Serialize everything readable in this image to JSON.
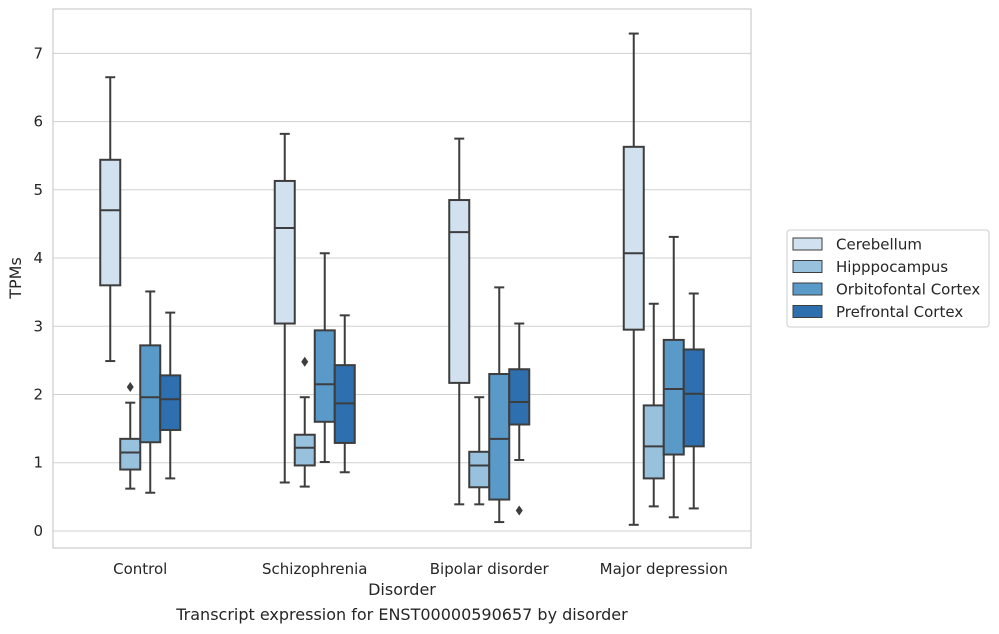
{
  "caption": "Transcript expression for ENST00000590657 by disorder",
  "chart_data": {
    "type": "box",
    "xlabel": "Disorder",
    "ylabel": "TPMs",
    "ylim": [
      -0.25,
      7.65
    ],
    "yticks": [
      0,
      1,
      2,
      3,
      4,
      5,
      6,
      7
    ],
    "grid": "horizontal",
    "legend_position": "right",
    "categories": [
      "Control",
      "Schizophrenia",
      "Bipolar disorder",
      "Major depression"
    ],
    "series": [
      {
        "name": "Cerebellum",
        "color": "#d1e1f0",
        "boxes": [
          {
            "whisker_low": 2.49,
            "q1": 3.6,
            "median": 4.7,
            "q3": 5.44,
            "whisker_high": 6.65,
            "outliers": []
          },
          {
            "whisker_low": 0.71,
            "q1": 3.04,
            "median": 4.44,
            "q3": 5.13,
            "whisker_high": 5.82,
            "outliers": []
          },
          {
            "whisker_low": 0.39,
            "q1": 2.17,
            "median": 4.38,
            "q3": 4.85,
            "whisker_high": 5.75,
            "outliers": []
          },
          {
            "whisker_low": 0.09,
            "q1": 2.95,
            "median": 4.07,
            "q3": 5.63,
            "whisker_high": 7.29,
            "outliers": []
          }
        ]
      },
      {
        "name": "Hipppocampus",
        "color": "#98c1de",
        "boxes": [
          {
            "whisker_low": 0.62,
            "q1": 0.9,
            "median": 1.15,
            "q3": 1.35,
            "whisker_high": 1.88,
            "outliers": [
              2.11
            ]
          },
          {
            "whisker_low": 0.65,
            "q1": 0.96,
            "median": 1.22,
            "q3": 1.41,
            "whisker_high": 1.96,
            "outliers": [
              2.48
            ]
          },
          {
            "whisker_low": 0.39,
            "q1": 0.64,
            "median": 0.96,
            "q3": 1.16,
            "whisker_high": 1.96,
            "outliers": []
          },
          {
            "whisker_low": 0.36,
            "q1": 0.77,
            "median": 1.24,
            "q3": 1.84,
            "whisker_high": 3.33,
            "outliers": []
          }
        ]
      },
      {
        "name": "Orbitofontal Cortex",
        "color": "#5a9ac9",
        "boxes": [
          {
            "whisker_low": 0.56,
            "q1": 1.3,
            "median": 1.96,
            "q3": 2.72,
            "whisker_high": 3.51,
            "outliers": []
          },
          {
            "whisker_low": 1.01,
            "q1": 1.6,
            "median": 2.15,
            "q3": 2.94,
            "whisker_high": 4.07,
            "outliers": []
          },
          {
            "whisker_low": 0.13,
            "q1": 0.46,
            "median": 1.35,
            "q3": 2.3,
            "whisker_high": 3.57,
            "outliers": []
          },
          {
            "whisker_low": 0.2,
            "q1": 1.12,
            "median": 2.08,
            "q3": 2.8,
            "whisker_high": 4.31,
            "outliers": []
          }
        ]
      },
      {
        "name": "Prefrontal Cortex",
        "color": "#2e6faf",
        "boxes": [
          {
            "whisker_low": 0.77,
            "q1": 1.48,
            "median": 1.93,
            "q3": 2.28,
            "whisker_high": 3.2,
            "outliers": []
          },
          {
            "whisker_low": 0.86,
            "q1": 1.29,
            "median": 1.87,
            "q3": 2.43,
            "whisker_high": 3.16,
            "outliers": []
          },
          {
            "whisker_low": 1.04,
            "q1": 1.56,
            "median": 1.89,
            "q3": 2.37,
            "whisker_high": 3.04,
            "outliers": [
              0.3
            ]
          },
          {
            "whisker_low": 0.33,
            "q1": 1.24,
            "median": 2.01,
            "q3": 2.66,
            "whisker_high": 3.48,
            "outliers": []
          }
        ]
      }
    ]
  }
}
